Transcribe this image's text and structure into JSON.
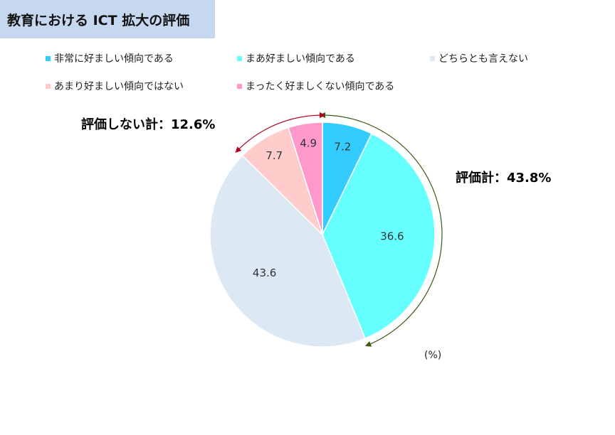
{
  "title": "教育における ICT 拡大の評価",
  "chart_data": {
    "type": "pie",
    "unit": "(%)",
    "categories": [
      "非常に好ましい傾向である",
      "まあ好ましい傾向である",
      "どちらとも言えない",
      "あまり好ましい傾向ではない",
      "まったく好ましくない傾向である"
    ],
    "values": [
      7.2,
      36.6,
      43.6,
      7.7,
      4.9
    ],
    "colors": [
      "#33ccff",
      "#66ffff",
      "#dde8f5",
      "#ffcccc",
      "#ff99cc"
    ],
    "legend_placement": "top",
    "annotations": {
      "positive": {
        "label": "評価計：43.8%",
        "color": "#1f3a7a"
      },
      "negative": {
        "label": "評価しない計：12.6%",
        "color": "#c00000"
      }
    }
  }
}
